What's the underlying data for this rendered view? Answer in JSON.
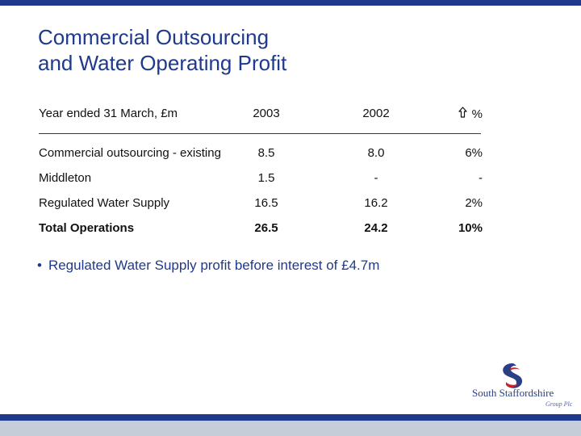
{
  "title": {
    "line1": "Commercial Outsourcing",
    "line2": "and Water Operating Profit"
  },
  "table": {
    "header": {
      "label": "Year ended 31 March, £m",
      "col2003": "2003",
      "col2002": "2002",
      "colChange": "%",
      "changeIcon": "up-arrow-icon"
    },
    "rows": [
      {
        "label": "Commercial outsourcing - existing",
        "v2003": "8.5",
        "v2002": "8.0",
        "change": "6%"
      },
      {
        "label": "Middleton",
        "v2003": "1.5",
        "v2002": "-",
        "change": "-"
      },
      {
        "label": "Regulated Water Supply",
        "v2003": "16.5",
        "v2002": "16.2",
        "change": "2%"
      },
      {
        "label": "Total Operations",
        "v2003": "26.5",
        "v2002": "24.2",
        "change": "10%"
      }
    ]
  },
  "bullets": [
    "Regulated Water Supply profit before interest of £4.7m"
  ],
  "logo": {
    "name": "South Staffordshire",
    "subtitle": "Group Plc"
  },
  "colors": {
    "brand_blue": "#1f3a8c",
    "logo_red": "#d0202a",
    "footer_grey": "#c5cdd9"
  }
}
